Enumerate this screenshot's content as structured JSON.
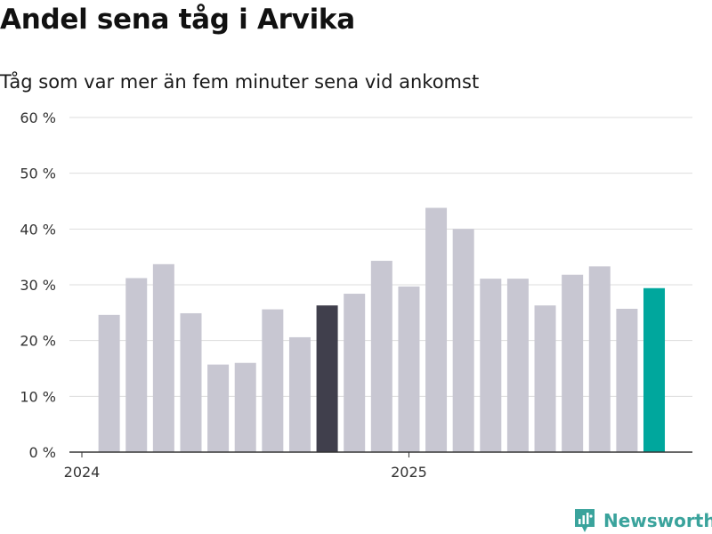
{
  "title": "Andel sena tåg i Arvika",
  "subtitle": "Tåg som var mer än fem minuter sena vid ankomst",
  "brand": {
    "name": "Newsworthy",
    "icon": "newsworthy-logo-icon"
  },
  "colors": {
    "bar_default": "#c8c7d2",
    "bar_highlight_dark": "#403f4c",
    "bar_highlight_teal": "#00a79d",
    "gridline": "#dddddd",
    "axis": "#333333",
    "brand": "#3aa39c"
  },
  "chart_data": {
    "type": "bar",
    "title": "Andel sena tåg i Arvika",
    "subtitle": "Tåg som var mer än fem minuter sena vid ankomst",
    "xlabel": "",
    "ylabel": "",
    "ylim": [
      0,
      60
    ],
    "y_ticks": [
      0,
      10,
      20,
      30,
      40,
      50,
      60
    ],
    "y_tick_labels": [
      "0 %",
      "10 %",
      "20 %",
      "30 %",
      "40 %",
      "50 %",
      "60 %"
    ],
    "x_tick_labels": [
      {
        "label": "2024",
        "category": "2024-01"
      },
      {
        "label": "2025",
        "category": "2025-01"
      }
    ],
    "grid": true,
    "categories": [
      "2024-01",
      "2024-02",
      "2024-03",
      "2024-04",
      "2024-05",
      "2024-06",
      "2024-07",
      "2024-08",
      "2024-09",
      "2024-10",
      "2024-11",
      "2024-12",
      "2025-01",
      "2025-02",
      "2025-03",
      "2025-04",
      "2025-05",
      "2025-06",
      "2025-07",
      "2025-08",
      "2025-09",
      "2025-10",
      "2025-11",
      "2025-12"
    ],
    "values": [
      null,
      24.6,
      31.2,
      33.7,
      24.9,
      15.7,
      16.0,
      25.6,
      20.6,
      26.3,
      28.4,
      34.3,
      29.7,
      43.8,
      40.0,
      31.1,
      31.1,
      26.3,
      31.8,
      33.3,
      25.7,
      29.4,
      null,
      null
    ],
    "highlights": {
      "2024-10": "dark",
      "2025-10": "teal"
    }
  }
}
